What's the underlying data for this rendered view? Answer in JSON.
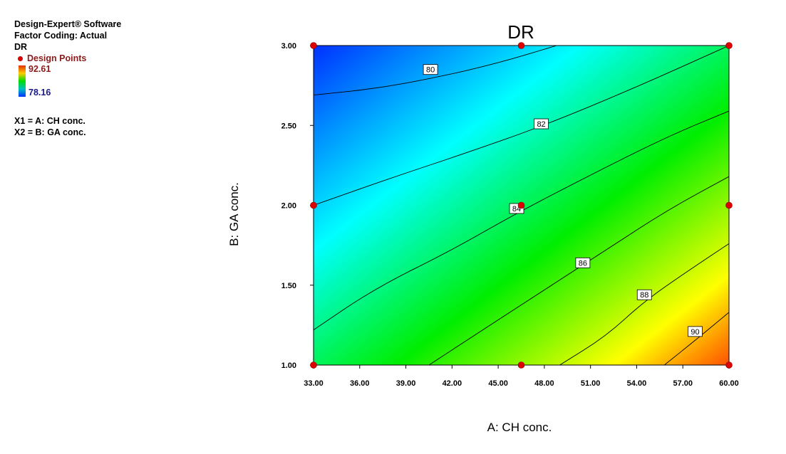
{
  "info": {
    "software": "Design-Expert® Software",
    "coding": "Factor Coding: Actual",
    "response": "DR",
    "design_points_label": "Design Points",
    "color_max": "92.61",
    "color_min": "78.16",
    "x1_def": "X1 = A: CH conc.",
    "x2_def": "X2 = B: GA conc."
  },
  "colors": {
    "low": "#0030ff",
    "mid_low": "#00ffff",
    "mid": "#00ee00",
    "mid_high": "#ffff00",
    "high": "#ff5000",
    "design_point": "#dd0000"
  },
  "chart_data": {
    "type": "contour",
    "title": "DR",
    "xlabel": "A: CH conc.",
    "ylabel": "B: GA conc.",
    "xlim": [
      33.0,
      60.0
    ],
    "ylim": [
      1.0,
      3.0
    ],
    "x_ticks": [
      "33.00",
      "36.00",
      "39.00",
      "42.00",
      "45.00",
      "48.00",
      "51.00",
      "54.00",
      "57.00",
      "60.00"
    ],
    "y_ticks": [
      "1.00",
      "1.50",
      "2.00",
      "2.50",
      "3.00"
    ],
    "response_range": [
      78.16,
      92.61
    ],
    "contours": [
      {
        "level": 80,
        "label": "80",
        "points": [
          [
            33.0,
            2.69
          ],
          [
            37.0,
            2.73
          ],
          [
            41.0,
            2.8
          ],
          [
            45.0,
            2.89
          ],
          [
            48.8,
            3.0
          ]
        ],
        "label_at": [
          40.6,
          2.85
        ]
      },
      {
        "level": 82,
        "label": "82",
        "points": [
          [
            33.0,
            2.0
          ],
          [
            38.0,
            2.17
          ],
          [
            43.0,
            2.33
          ],
          [
            48.0,
            2.5
          ],
          [
            54.0,
            2.74
          ],
          [
            60.0,
            3.0
          ]
        ],
        "label_at": [
          47.8,
          2.51
        ]
      },
      {
        "level": 84,
        "label": "84",
        "points": [
          [
            33.0,
            1.22
          ],
          [
            37.0,
            1.48
          ],
          [
            42.0,
            1.72
          ],
          [
            46.0,
            1.94
          ],
          [
            51.0,
            2.19
          ],
          [
            56.0,
            2.43
          ],
          [
            60.0,
            2.59
          ]
        ],
        "label_at": [
          46.2,
          1.98
        ]
      },
      {
        "level": 86,
        "label": "86",
        "points": [
          [
            40.5,
            1.0
          ],
          [
            44.0,
            1.22
          ],
          [
            48.0,
            1.47
          ],
          [
            52.0,
            1.72
          ],
          [
            56.0,
            1.97
          ],
          [
            60.0,
            2.18
          ]
        ],
        "label_at": [
          50.5,
          1.64
        ]
      },
      {
        "level": 88,
        "label": "88",
        "points": [
          [
            49.0,
            1.0
          ],
          [
            52.0,
            1.18
          ],
          [
            54.5,
            1.4
          ],
          [
            57.5,
            1.6
          ],
          [
            60.0,
            1.76
          ]
        ],
        "label_at": [
          54.5,
          1.44
        ]
      },
      {
        "level": 90,
        "label": "90",
        "points": [
          [
            55.8,
            1.0
          ],
          [
            58.0,
            1.17
          ],
          [
            60.0,
            1.33
          ]
        ],
        "label_at": [
          57.8,
          1.21
        ]
      }
    ],
    "design_points": [
      [
        33.0,
        1.0
      ],
      [
        46.5,
        1.0
      ],
      [
        60.0,
        1.0
      ],
      [
        33.0,
        2.0
      ],
      [
        46.5,
        2.0
      ],
      [
        60.0,
        2.0
      ],
      [
        33.0,
        3.0
      ],
      [
        46.5,
        3.0
      ],
      [
        60.0,
        3.0
      ]
    ]
  }
}
